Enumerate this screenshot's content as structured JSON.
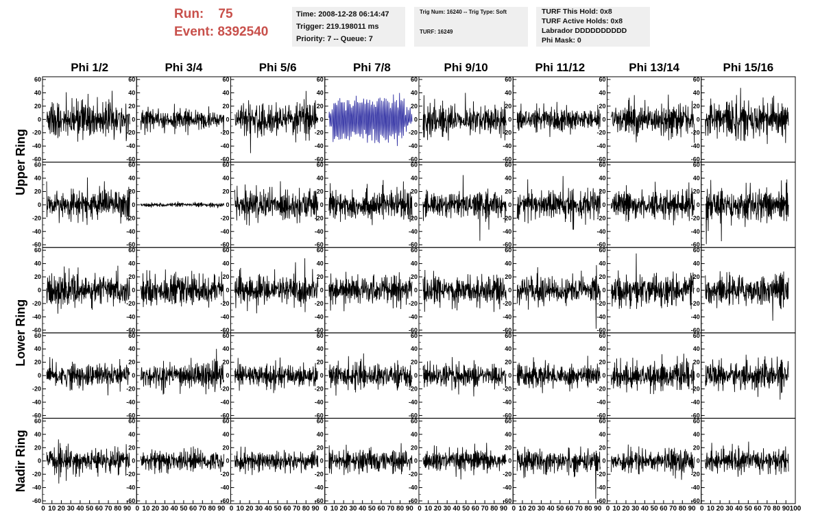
{
  "header": {
    "run_label": "Run:",
    "run_value": "75",
    "event_label": "Event:",
    "event_value": "8392540",
    "time_box": [
      "Time: 2008-12-28 06:14:47",
      "Trigger: 219.198011 ms",
      "Priority: 7 -- Queue: 7"
    ],
    "trig_box": [
      "Trig Num: 16240 -- Trig Type: Soft",
      "TURF: 16249"
    ],
    "turf_box": [
      "TURF This Hold: 0x8",
      "TURF Active Holds: 0x8",
      "Labrador DDDDDDDDDD",
      "Phi Mask: 0"
    ]
  },
  "colors": {
    "accent": "#c8504b",
    "trace": "#000000",
    "highlight_trace": "#2a2aa0",
    "box": "#efefef"
  },
  "chart_data": {
    "type": "line",
    "title": "",
    "columns": [
      "Phi 1/2",
      "Phi 3/4",
      "Phi 5/6",
      "Phi 7/8",
      "Phi 9/10",
      "Phi 11/12",
      "Phi 13/14",
      "Phi 15/16"
    ],
    "row_groups": [
      "Upper Ring",
      "Lower Ring",
      "Nadir Ring"
    ],
    "rows_per_group": [
      2,
      2,
      1
    ],
    "ylim": [
      -60,
      60
    ],
    "y_ticks": [
      -60,
      -40,
      -20,
      0,
      20,
      40,
      60
    ],
    "xlim": [
      0,
      100
    ],
    "x_ticks": [
      0,
      10,
      20,
      30,
      40,
      50,
      60,
      70,
      80,
      90,
      100
    ],
    "samples_per_trace": 260,
    "amplitude_map": [
      [
        17,
        10,
        15,
        30,
        16,
        11,
        16,
        19
      ],
      [
        14,
        2,
        16,
        15,
        12,
        15,
        14,
        17
      ],
      [
        15,
        14,
        15,
        14,
        15,
        14,
        15,
        15
      ],
      [
        12,
        13,
        11,
        12,
        11,
        12,
        13,
        14
      ],
      [
        12,
        10,
        10,
        11,
        11,
        11,
        12,
        12
      ]
    ],
    "highlighted_panel": {
      "row": 0,
      "col": 3
    }
  }
}
